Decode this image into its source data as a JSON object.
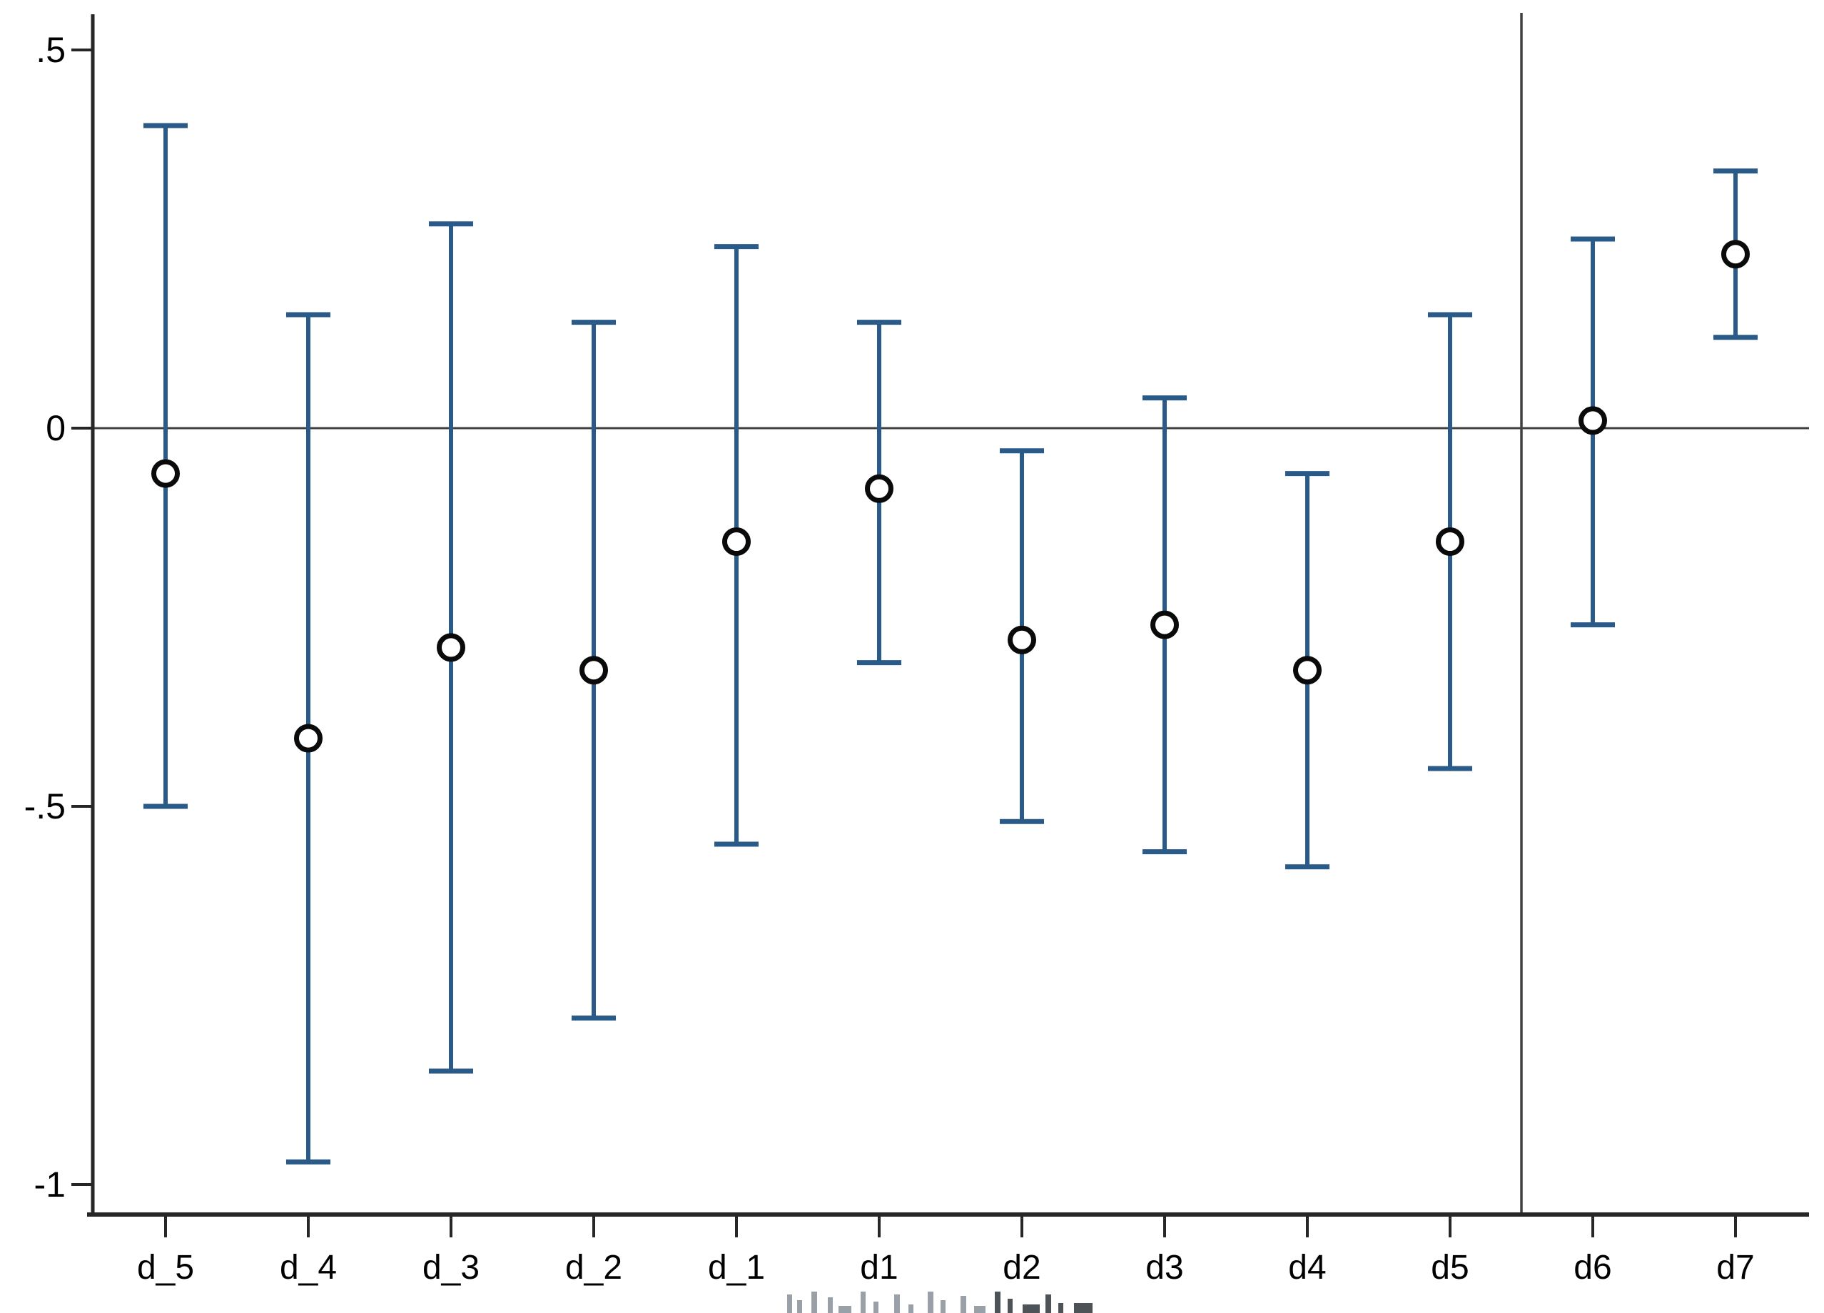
{
  "chart_data": {
    "type": "scatter",
    "variant": "coefficient_plot_with_ci_errorbars",
    "title": "",
    "xlabel": "",
    "ylabel": "",
    "categories": [
      "d_5",
      "d_4",
      "d_3",
      "d_2",
      "d_1",
      "d1",
      "d2",
      "d3",
      "d4",
      "d5",
      "d6",
      "d7"
    ],
    "series": [
      {
        "name": "point estimates with confidence intervals",
        "marker": "hollow-circle",
        "points": [
          {
            "label": "d_5",
            "value": -0.06,
            "ci_low": -0.5,
            "ci_high": 0.4
          },
          {
            "label": "d_4",
            "value": -0.41,
            "ci_low": -0.97,
            "ci_high": 0.15
          },
          {
            "label": "d_3",
            "value": -0.29,
            "ci_low": -0.85,
            "ci_high": 0.27
          },
          {
            "label": "d_2",
            "value": -0.32,
            "ci_low": -0.78,
            "ci_high": 0.14
          },
          {
            "label": "d_1",
            "value": -0.15,
            "ci_low": -0.55,
            "ci_high": 0.24
          },
          {
            "label": "d1",
            "value": -0.08,
            "ci_low": -0.31,
            "ci_high": 0.14
          },
          {
            "label": "d2",
            "value": -0.28,
            "ci_low": -0.52,
            "ci_high": -0.03
          },
          {
            "label": "d3",
            "value": -0.26,
            "ci_low": -0.56,
            "ci_high": 0.04
          },
          {
            "label": "d4",
            "value": -0.32,
            "ci_low": -0.58,
            "ci_high": -0.06
          },
          {
            "label": "d5",
            "value": -0.15,
            "ci_low": -0.45,
            "ci_high": 0.15
          },
          {
            "label": "d6",
            "value": 0.01,
            "ci_low": -0.26,
            "ci_high": 0.25
          },
          {
            "label": "d7",
            "value": 0.23,
            "ci_low": 0.12,
            "ci_high": 0.34
          }
        ]
      }
    ],
    "y_ticks": [
      {
        "value": 0.5,
        "label": ".5"
      },
      {
        "value": 0,
        "label": "0"
      },
      {
        "value": -0.5,
        "label": "-.5"
      },
      {
        "value": -1,
        "label": "-1"
      }
    ],
    "ylim": [
      -1.04,
      0.55
    ],
    "reference_lines": {
      "horizontal_at_y": 0,
      "vertical_between_categories": [
        "d5",
        "d6"
      ]
    },
    "grid": false,
    "legend": false,
    "x_axis_title_cropped": true,
    "colors": {
      "ci_bar": "#2a5a88",
      "marker": "#0a0a0a",
      "axis": "#262626",
      "reference_line": "#404040",
      "background": "#ffffff",
      "cropped_text_light": "#9aa0a8",
      "cropped_text_dark": "#4e5358"
    }
  }
}
